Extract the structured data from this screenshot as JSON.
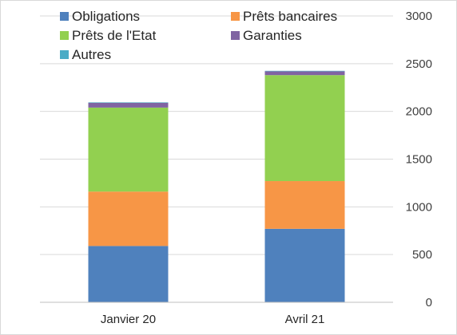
{
  "chart_data": {
    "type": "bar",
    "stacked": true,
    "categories": [
      "Janvier 20",
      "Avril 21"
    ],
    "series": [
      {
        "name": "Obligations",
        "color": "#4f81bd",
        "values": [
          590,
          770
        ]
      },
      {
        "name": "Prêts bancaires",
        "color": "#f79646",
        "values": [
          570,
          500
        ]
      },
      {
        "name": "Prêts de l'Etat",
        "color": "#92d050",
        "values": [
          880,
          1110
        ]
      },
      {
        "name": "Garanties",
        "color": "#8064a2",
        "values": [
          50,
          40
        ]
      },
      {
        "name": "Autres",
        "color": "#4bacc6",
        "values": [
          5,
          5
        ]
      }
    ],
    "ylim": [
      0,
      3000
    ],
    "yticks": [
      "0",
      "500",
      "1000",
      "1500",
      "2000",
      "2500",
      "3000"
    ],
    "y_axis_position": "right",
    "grid": true,
    "legend_position": "top-left"
  }
}
